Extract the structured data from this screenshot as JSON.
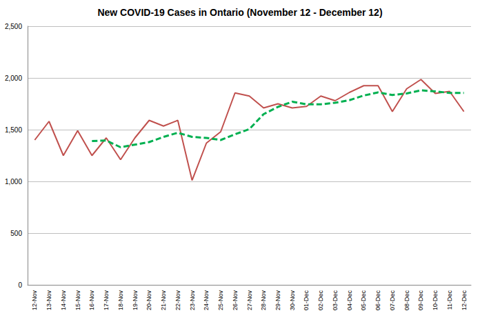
{
  "chart_data": {
    "type": "line",
    "title": "New COVID-19 Cases in Ontario (November 12 - December 12)",
    "categories": [
      "12-Nov",
      "13-Nov",
      "14-Nov",
      "15-Nov",
      "16-Nov",
      "17-Nov",
      "18-Nov",
      "19-Nov",
      "20-Nov",
      "21-Nov",
      "22-Nov",
      "23-Nov",
      "24-Nov",
      "25-Nov",
      "26-Nov",
      "27-Nov",
      "28-Nov",
      "29-Nov",
      "30-Nov",
      "01-Dec",
      "02-Dec",
      "03-Dec",
      "04-Dec",
      "05-Dec",
      "06-Dec",
      "07-Dec",
      "08-Dec",
      "09-Dec",
      "10-Dec",
      "11-Dec",
      "12-Dec"
    ],
    "series": [
      {
        "color": "#c0504d",
        "line_style": "solid",
        "marker": "none",
        "values": [
          1400,
          1580,
          1250,
          1490,
          1250,
          1420,
          1210,
          1420,
          1590,
          1535,
          1590,
          1010,
          1370,
          1480,
          1855,
          1825,
          1710,
          1750,
          1710,
          1725,
          1825,
          1780,
          1860,
          1925,
          1925,
          1675,
          1895,
          1985,
          1850,
          1870,
          1675
        ]
      },
      {
        "color": "#00b050",
        "line_style": "dashed",
        "marker": "none",
        "values": [
          null,
          null,
          null,
          null,
          1390,
          1395,
          1330,
          1355,
          1380,
          1430,
          1470,
          1430,
          1420,
          1400,
          1455,
          1505,
          1650,
          1720,
          1770,
          1745,
          1745,
          1760,
          1785,
          1830,
          1860,
          1835,
          1850,
          1880,
          1870,
          1855,
          1855
        ]
      }
    ],
    "ylim": [
      0,
      2500
    ],
    "yticks": [
      0,
      500,
      {
        "value": 1000,
        "label": "1,000"
      },
      {
        "value": 1500,
        "label": "1,500"
      },
      {
        "value": 2000,
        "label": "2,000"
      },
      {
        "value": 2500,
        "label": "2,500"
      }
    ],
    "grid": true
  }
}
